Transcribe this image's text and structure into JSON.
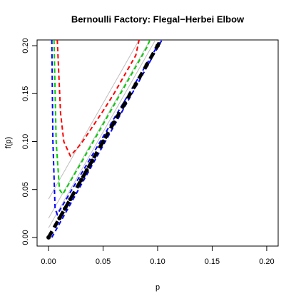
{
  "chart_data": {
    "type": "line",
    "title": "Bernoulli Factory: Flegal−Herbei Elbow",
    "x_label": "p",
    "y_label": "f(p)",
    "xlim": [
      -0.0105,
      0.2105
    ],
    "ylim": [
      -0.009,
      0.206
    ],
    "xticks": [
      {
        "value": 0,
        "label": "0.00"
      },
      {
        "value": 0.05,
        "label": "0.05"
      },
      {
        "value": 0.1,
        "label": "0.10"
      },
      {
        "value": 0.15,
        "label": "0.15"
      },
      {
        "value": 0.2,
        "label": "0.20"
      }
    ],
    "yticks": [
      {
        "value": 0,
        "label": "0.00"
      },
      {
        "value": 0.05,
        "label": "0.05"
      },
      {
        "value": 0.1,
        "label": "0.10"
      },
      {
        "value": 0.15,
        "label": "0.15"
      },
      {
        "value": 0.2,
        "label": "0.20"
      }
    ],
    "series": [
      {
        "color": "#bebebe",
        "style": "solid",
        "x": [
          0,
          0.083
        ],
        "values": [
          0.04,
          0.206
        ]
      },
      {
        "color": "#bebebe",
        "style": "solid",
        "x": [
          0,
          0.093
        ],
        "values": [
          0.02,
          0.206
        ]
      },
      {
        "color": "#bebebe",
        "style": "solid",
        "x": [
          0,
          0.098
        ],
        "values": [
          0.01,
          0.206
        ]
      },
      {
        "color": "#ff0000",
        "style": "dashed",
        "x": [
          0.008,
          0.011,
          0.014,
          0.02,
          0.03,
          0.04,
          0.05,
          0.06,
          0.07,
          0.08,
          0.083
        ],
        "values": [
          0.206,
          0.13,
          0.1,
          0.085,
          0.098,
          0.115,
          0.132,
          0.15,
          0.17,
          0.19,
          0.206
        ]
      },
      {
        "color": "#00cd00",
        "style": "dashed",
        "x": [
          0.005,
          0.007,
          0.01,
          0.013,
          0.03,
          0.05,
          0.07,
          0.09,
          0.093
        ],
        "values": [
          0.206,
          0.1,
          0.05,
          0.045,
          0.078,
          0.118,
          0.158,
          0.198,
          0.206
        ]
      },
      {
        "color": "#0000ff",
        "style": "dashed",
        "x": [
          0.003,
          0.004,
          0.006,
          0.008,
          0.05,
          0.1,
          0.103
        ],
        "values": [
          0.206,
          0.1,
          0.03,
          0.024,
          0.105,
          0.2,
          0.206
        ]
      },
      {
        "color": "#0000ff",
        "style": "dashed",
        "x": [
          0.003,
          0.104
        ],
        "values": [
          0,
          0.206
        ]
      },
      {
        "color": "#000000",
        "style": "thickdashed",
        "x": [
          0,
          0.103
        ],
        "values": [
          0,
          0.206
        ]
      },
      {
        "color": "#000000",
        "style": "points",
        "x": [
          0,
          0.01,
          0.015,
          0.02,
          0.03,
          0.035,
          0.04,
          0.05,
          0.06,
          0.07,
          0.08,
          0.09,
          0.1
        ],
        "values": [
          0,
          0.02,
          0.03,
          0.04,
          0.06,
          0.07,
          0.08,
          0.1,
          0.12,
          0.14,
          0.16,
          0.18,
          0.2
        ]
      }
    ]
  }
}
